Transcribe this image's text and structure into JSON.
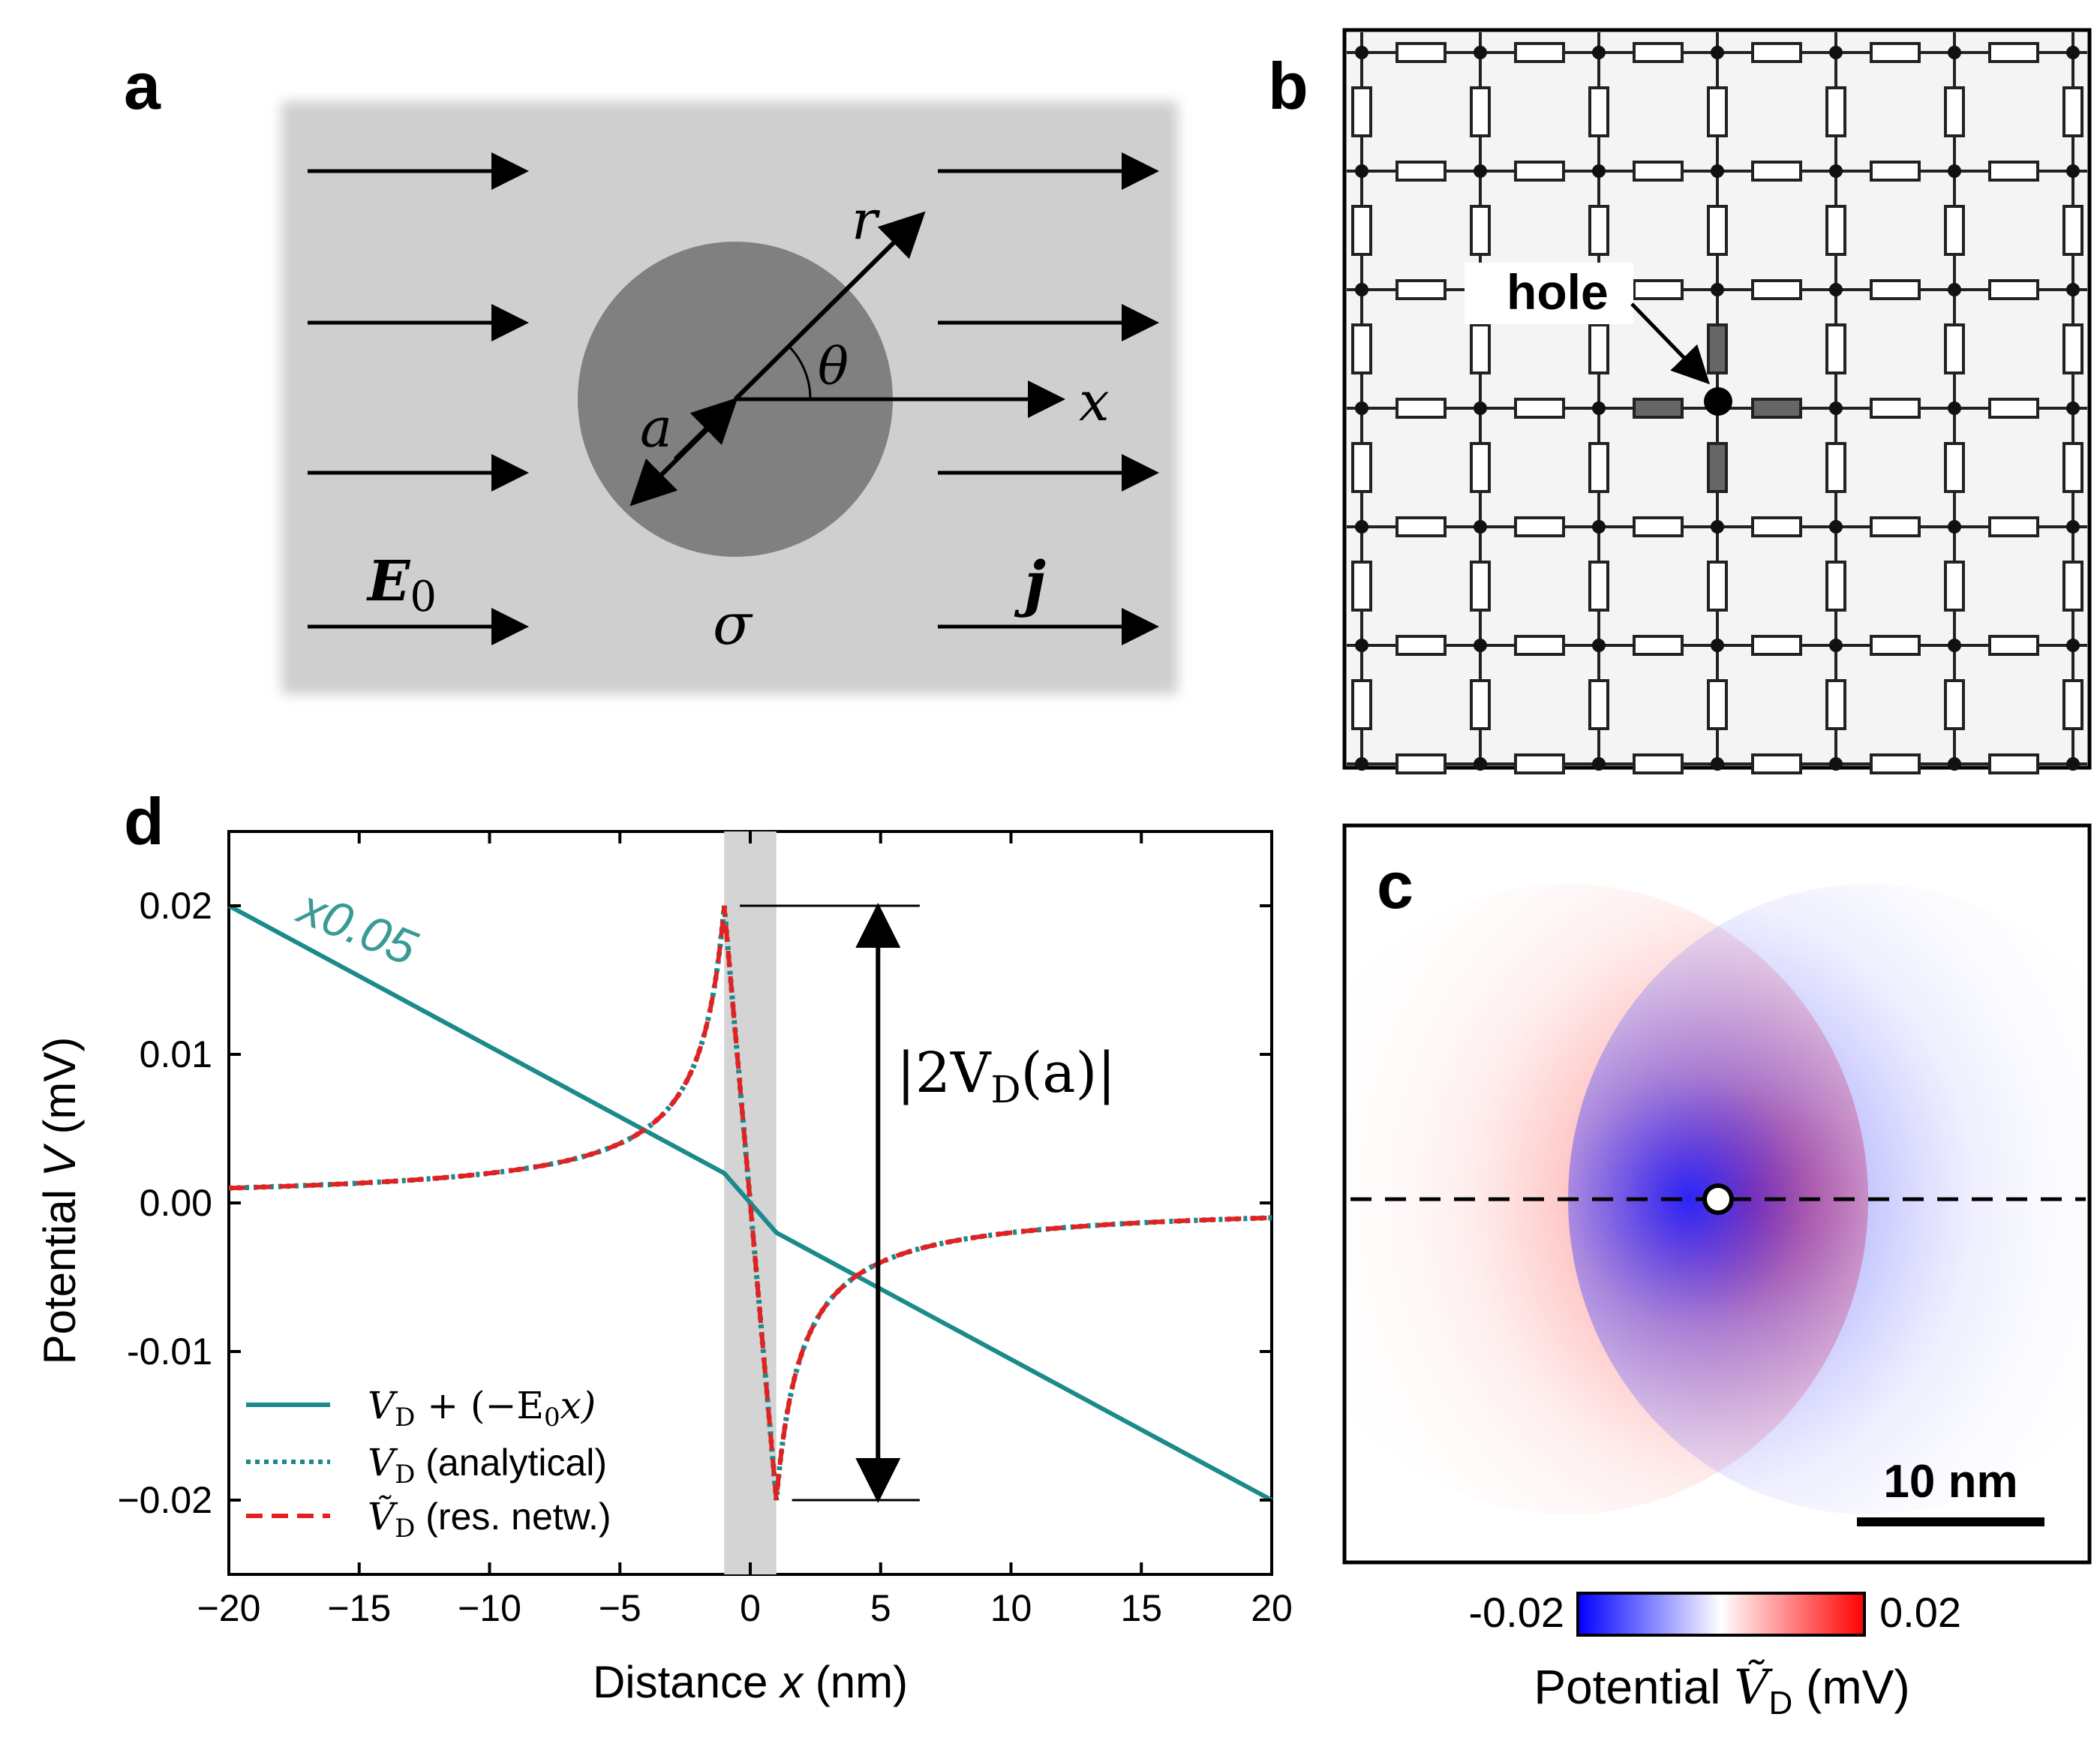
{
  "panels": {
    "a": {
      "letter": "a",
      "labels": {
        "r": "r",
        "theta": "θ",
        "x": "x",
        "a": "a",
        "E": "E",
        "E_sub": "0",
        "j": "j",
        "sigma": "σ"
      }
    },
    "b": {
      "letter": "b",
      "hole_label": "hole"
    },
    "c": {
      "letter": "c",
      "scalebar_label": "10 nm",
      "colorbar_min": "-0.02",
      "colorbar_max": "0.02",
      "colorbar_label_pre": "Potential ",
      "colorbar_label_var": "Ṽ",
      "colorbar_label_sub": "D",
      "colorbar_label_post": " (mV)",
      "colors": {
        "negative": "#0000ff",
        "zero": "#ffffff",
        "positive": "#ff0000"
      }
    },
    "d": {
      "letter": "d",
      "scale_annotation": "x0.05",
      "bracket_label": "|2V",
      "bracket_label_sub": "D",
      "bracket_label_post": "(a)|"
    }
  },
  "chart_data": {
    "type": "line",
    "xlabel_pre": "Distance ",
    "xlabel_var": "x",
    "xlabel_post": " (nm)",
    "ylabel_pre": "Potential ",
    "ylabel_var": "V",
    "ylabel_post": " (mV)",
    "xlim": [
      -20,
      20
    ],
    "ylim": [
      -0.025,
      0.025
    ],
    "x_ticks": [
      -20,
      -15,
      -10,
      -5,
      0,
      5,
      10,
      15,
      20
    ],
    "x_tick_labels": [
      "−20",
      "−15",
      "−10",
      "−5",
      "0",
      "5",
      "10",
      "15",
      "20"
    ],
    "y_ticks": [
      0.02,
      0.01,
      0.0,
      -0.01,
      -0.02
    ],
    "y_tick_labels": [
      "0.02",
      "0.01",
      "0.00",
      "-0.01",
      "−0.02"
    ],
    "hole_region": [
      -1,
      1
    ],
    "hole_radius_a": 1,
    "peak_value": 0.02,
    "series": [
      {
        "name": "V_D + (−E_0 x)",
        "legend_var": "V",
        "legend_sub": "D",
        "legend_post": " + (−E",
        "legend_sub2": "0",
        "legend_post2": "x)",
        "style": "solid",
        "color": "#1a8a8a",
        "x": [
          -20,
          -1,
          1,
          20
        ],
        "y": [
          0.02,
          0.002,
          -0.002,
          -0.02
        ]
      },
      {
        "name": "V_D (analytical)",
        "legend_var": "V",
        "legend_sub": "D",
        "legend_post": " (analytical)",
        "style": "dotted",
        "color": "#1a8a8a",
        "formula": "a^2/x outside hole, linear inside"
      },
      {
        "name": "Ṽ_D (res. netw.)",
        "legend_var": "Ṽ",
        "legend_sub": "D",
        "legend_post": " (res. netw.)",
        "style": "dashed",
        "color": "#e52020",
        "formula": "a^2/x outside hole, linear inside"
      }
    ]
  }
}
